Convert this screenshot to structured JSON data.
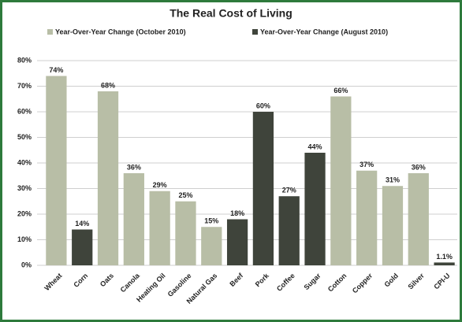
{
  "chart_data": {
    "type": "bar",
    "title": "The Real Cost of Living",
    "categories": [
      "Wheat",
      "Corn",
      "Oats",
      "Canola",
      "Heating Oil",
      "Gasoline",
      "Natural Gas",
      "Beef",
      "Pork",
      "Coffee",
      "Sugar",
      "Cotton",
      "Copper",
      "Gold",
      "Silver",
      "CPI-U"
    ],
    "series": [
      {
        "name": "Year-Over-Year Change (October 2010)",
        "color": "#b8bea6",
        "values": [
          74,
          null,
          68,
          36,
          29,
          25,
          15,
          null,
          null,
          null,
          null,
          66,
          37,
          31,
          36,
          null
        ],
        "value_labels": [
          "74%",
          null,
          "68%",
          "36%",
          "29%",
          "25%",
          "15%",
          null,
          null,
          null,
          null,
          "66%",
          "37%",
          "31%",
          "36%",
          null
        ]
      },
      {
        "name": "Year-Over-Year Change (August 2010)",
        "color": "#3f443b",
        "values": [
          null,
          14,
          null,
          null,
          null,
          null,
          null,
          18,
          60,
          27,
          44,
          null,
          null,
          null,
          null,
          1.1
        ],
        "value_labels": [
          null,
          "14%",
          null,
          null,
          null,
          null,
          null,
          "18%",
          "60%",
          "27%",
          "44%",
          null,
          null,
          null,
          null,
          "1.1%"
        ]
      }
    ],
    "ylim": [
      0,
      80
    ],
    "yticks": [
      {
        "value": 0,
        "label": "0%"
      },
      {
        "value": 10,
        "label": "10%"
      },
      {
        "value": 20,
        "label": "20%"
      },
      {
        "value": 30,
        "label": "30%"
      },
      {
        "value": 40,
        "label": "40%"
      },
      {
        "value": 50,
        "label": "50%"
      },
      {
        "value": 60,
        "label": "60%"
      },
      {
        "value": 70,
        "label": "70%"
      },
      {
        "value": 80,
        "label": "80%"
      }
    ],
    "grid": true
  }
}
